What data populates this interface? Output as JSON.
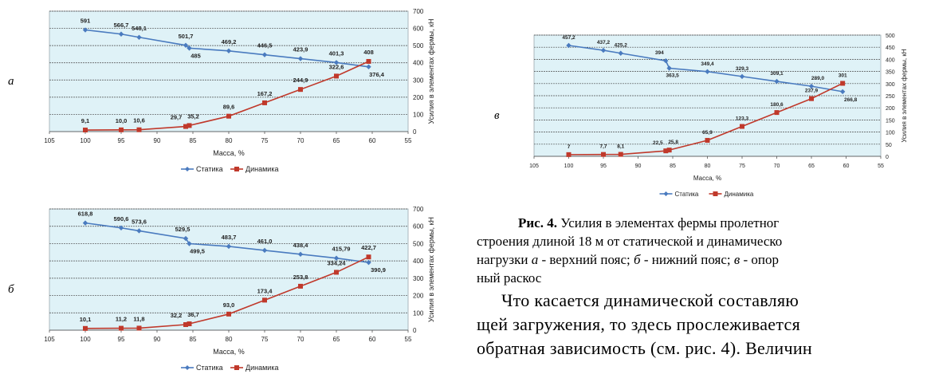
{
  "colors": {
    "static": "#4a7bbf",
    "dynamic": "#c0392b",
    "plot_bg": "#dff2f7"
  },
  "panel_letters": {
    "a": "а",
    "b": "б",
    "c": "в"
  },
  "caption": {
    "label": "Рис. 4.",
    "text1": " Усилия в элементах фермы пролетног",
    "line2": "строения длиной 18 м от статической и динамическо",
    "line3_pre": "нагрузки ",
    "a": "а",
    "sep_a": " - верхний пояс; ",
    "b": "б",
    "sep_b": " - нижний пояс; ",
    "c": "в",
    "sep_c": " - опор",
    "line4": "ный раскос"
  },
  "paragraph": {
    "line1": "Что касается динамической составляю",
    "line2": "щей загружения, то здесь прослеживается",
    "line3": "обратная зависимость (см. рис. 4). Величин"
  },
  "chart_data": [
    {
      "type": "line",
      "panel": "а",
      "xlabel": "Масса, %",
      "ylabel": "Усилия в элементах фермы, кН",
      "xlim": [
        105,
        55
      ],
      "ylim": [
        0,
        700
      ],
      "xticks": [
        105,
        100,
        95,
        90,
        85,
        80,
        75,
        70,
        65,
        60,
        55
      ],
      "yticks": [
        0,
        100,
        200,
        300,
        400,
        500,
        600,
        700
      ],
      "legend": "bottom",
      "series": [
        {
          "name": "Статика",
          "x": [
            100,
            95,
            92.5,
            86,
            85.5,
            80,
            75,
            70,
            65,
            60.5
          ],
          "y": [
            591,
            566.7,
            548.1,
            501.7,
            485,
            469.2,
            446.5,
            423.9,
            401.3,
            376.4
          ],
          "labels": [
            "591",
            "566,7",
            "548,1",
            "501,7",
            "485",
            "469,2",
            "446,5",
            "423,9",
            "401,3",
            "376,4"
          ]
        },
        {
          "name": "Динамика",
          "x": [
            100,
            95,
            92.5,
            86,
            85.5,
            80,
            75,
            70,
            65,
            60.5
          ],
          "y": [
            9.1,
            10.0,
            10.6,
            29.7,
            35.2,
            89.6,
            167.2,
            244.9,
            322.6,
            408
          ],
          "labels": [
            "9,1",
            "10,0",
            "10,6",
            "29,7",
            "35,2",
            "89,6",
            "167,2",
            "244,9",
            "322,6",
            "408"
          ]
        }
      ]
    },
    {
      "type": "line",
      "panel": "б",
      "xlabel": "Масса, %",
      "ylabel": "Усилия в элементах фермы, кН",
      "xlim": [
        105,
        55
      ],
      "ylim": [
        0,
        700
      ],
      "xticks": [
        105,
        100,
        95,
        90,
        85,
        80,
        75,
        70,
        65,
        60,
        55
      ],
      "yticks": [
        0,
        100,
        200,
        300,
        400,
        500,
        600,
        700
      ],
      "legend": "bottom",
      "series": [
        {
          "name": "Статика",
          "x": [
            100,
            95,
            92.5,
            86,
            85.5,
            80,
            75,
            70,
            65,
            60.5
          ],
          "y": [
            618.8,
            590.6,
            573.6,
            529.5,
            499.5,
            483.7,
            461.0,
            438.4,
            415.79,
            390.9
          ],
          "labels": [
            "618,8",
            "590,6",
            "573,6",
            "529,5",
            "499,5",
            "483,7",
            "461,0",
            "438,4",
            "415,79",
            "390,9"
          ]
        },
        {
          "name": "Динамика",
          "x": [
            100,
            95,
            92.5,
            86,
            85.5,
            80,
            75,
            70,
            65,
            60.5
          ],
          "y": [
            10.1,
            11.2,
            11.8,
            32.2,
            36.7,
            93.0,
            173.4,
            253.8,
            334.24,
            422.7
          ],
          "labels": [
            "10,1",
            "11,2",
            "11,8",
            "32,2",
            "36,7",
            "93,0",
            "173,4",
            "253,8",
            "334,24",
            "422,7"
          ]
        }
      ]
    },
    {
      "type": "line",
      "panel": "в",
      "xlabel": "Масса, %",
      "ylabel": "Усилия в элементах фермы, кН",
      "xlim": [
        105,
        55
      ],
      "ylim": [
        0,
        500
      ],
      "xticks": [
        105,
        100,
        95,
        90,
        85,
        80,
        75,
        70,
        65,
        60,
        55
      ],
      "yticks": [
        0,
        50,
        100,
        150,
        200,
        250,
        300,
        350,
        400,
        450,
        500
      ],
      "legend": "bottom",
      "series": [
        {
          "name": "Статика",
          "x": [
            100,
            95,
            92.5,
            86,
            85.5,
            80,
            75,
            70,
            65,
            60.5
          ],
          "y": [
            457.2,
            437.2,
            425.2,
            394,
            363.5,
            349.4,
            329.3,
            309.1,
            289.0,
            266.8
          ],
          "labels": [
            "457,2",
            "437,2",
            "425,2",
            "394",
            "363,5",
            "349,4",
            "329,3",
            "309,1",
            "289,0",
            "266,8"
          ]
        },
        {
          "name": "Динамика",
          "x": [
            100,
            95,
            92.5,
            86,
            85.5,
            80,
            75,
            70,
            65,
            60.5
          ],
          "y": [
            7,
            7.7,
            8.1,
            22.5,
            25.8,
            65.9,
            123.3,
            180.6,
            237.9,
            301
          ],
          "labels": [
            "7",
            "7,7",
            "8,1",
            "22,5",
            "25,8",
            "65,9",
            "123,3",
            "180,6",
            "237,9",
            "301"
          ]
        }
      ]
    }
  ]
}
